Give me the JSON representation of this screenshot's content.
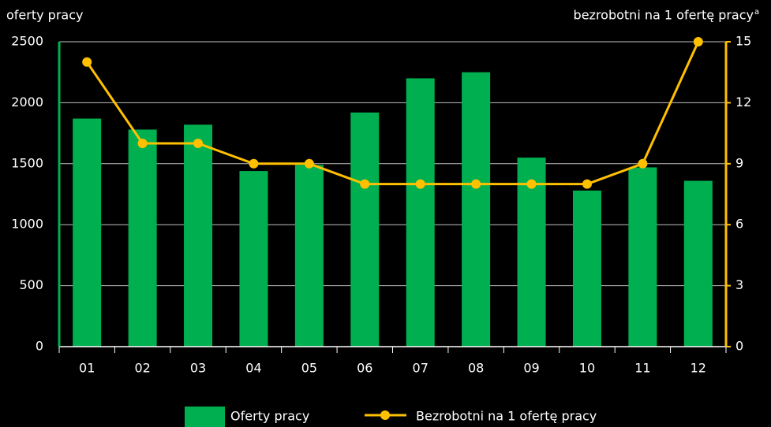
{
  "chart_data": {
    "type": "bar_line",
    "y_label": "oferty pracy",
    "y2_label": "bezrobotni na 1 ofertę pracy",
    "y2_label_note": "a",
    "categories": [
      "01",
      "02",
      "03",
      "04",
      "05",
      "06",
      "07",
      "08",
      "09",
      "10",
      "11",
      "12"
    ],
    "series": [
      {
        "name": "Oferty pracy",
        "type": "bar",
        "color": "#00b050",
        "axis": "y",
        "values": [
          1870,
          1780,
          1820,
          1440,
          1490,
          1920,
          2200,
          2250,
          1550,
          1280,
          1470,
          1360
        ]
      },
      {
        "name": "Bezrobotni na 1 ofertę pracy",
        "type": "line",
        "color": "#ffc000",
        "axis": "y2",
        "values": [
          14,
          10,
          10,
          9,
          9,
          8,
          8,
          8,
          8,
          8,
          9,
          15
        ]
      }
    ],
    "ylim": [
      0,
      2500
    ],
    "yticks": [
      0,
      500,
      1000,
      1500,
      2000,
      2500
    ],
    "y2lim": [
      0,
      15
    ],
    "y2ticks": [
      0,
      3,
      6,
      9,
      12,
      15
    ],
    "grid": true,
    "legend": "bottom"
  }
}
